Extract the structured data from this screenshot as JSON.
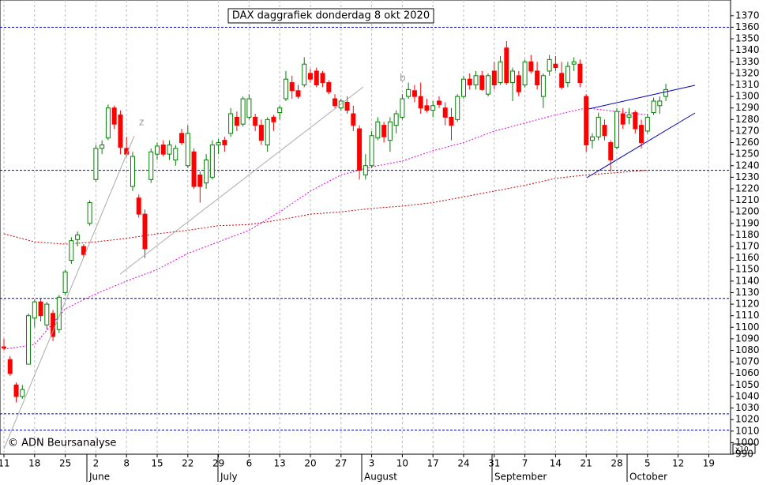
{
  "chart_data": {
    "type": "candlestick",
    "title": "DAX daggrafiek donderdag 8 okt 2020",
    "watermark": "© ADN Beursanalyse",
    "annotations": [
      "z",
      "b"
    ],
    "axis_multiplier": "x10",
    "x_tick_labels": [
      "11",
      "18",
      "25",
      "2",
      "8",
      "15",
      "22",
      "29",
      "6",
      "13",
      "20",
      "27",
      "3",
      "10",
      "17",
      "24",
      "31",
      "7",
      "14",
      "21",
      "28",
      "5",
      "12",
      "19"
    ],
    "months": [
      "June",
      "July",
      "August",
      "September",
      "October"
    ],
    "ylim": [
      990,
      1372
    ],
    "yticks": [
      990,
      1000,
      1010,
      1020,
      1030,
      1040,
      1050,
      1060,
      1070,
      1080,
      1090,
      1100,
      1110,
      1120,
      1130,
      1140,
      1150,
      1160,
      1170,
      1180,
      1190,
      1200,
      1210,
      1220,
      1230,
      1240,
      1250,
      1260,
      1270,
      1280,
      1290,
      1300,
      1310,
      1320,
      1330,
      1340,
      1350,
      1360,
      1370
    ],
    "up_color": "#008000",
    "down_color": "#ff0000",
    "hlines": [
      1360,
      1236,
      1125,
      1025,
      1011
    ],
    "hline_color": "#0000c0",
    "ma": [
      {
        "color": "#e000e0",
        "values": [
          1081,
          1085,
          1116,
          1129,
          1140,
          1150,
          1164,
          1174,
          1184,
          1200,
          1218,
          1232,
          1239,
          1244,
          1253,
          1260,
          1270,
          1277,
          1284,
          1290,
          1287,
          1284,
          null,
          null
        ]
      },
      {
        "color": "#d00000",
        "values": [
          1181,
          1174,
          1172,
          1174,
          1177,
          1181,
          1184,
          1188,
          1189,
          1193,
          1198,
          1200,
          1203,
          1205,
          1208,
          1213,
          1218,
          1223,
          1229,
          1232,
          1234,
          1236,
          null,
          null
        ]
      }
    ],
    "ohlc": [
      [
        1083,
        1090,
        1080,
        1082
      ],
      [
        1072,
        1075,
        1058,
        1060
      ],
      [
        1050,
        1052,
        1035,
        1040
      ],
      [
        1040,
        1050,
        1038,
        1046
      ],
      [
        1068,
        1112,
        1068,
        1110
      ],
      [
        1108,
        1124,
        1100,
        1122
      ],
      [
        1122,
        1125,
        1105,
        1110
      ],
      [
        1102,
        1122,
        1098,
        1120
      ],
      [
        1112,
        1115,
        1088,
        1092
      ],
      [
        1098,
        1128,
        1095,
        1126
      ],
      [
        1130,
        1150,
        1128,
        1148
      ],
      [
        1158,
        1178,
        1155,
        1175
      ],
      [
        1176,
        1183,
        1170,
        1180
      ],
      [
        1170,
        1172,
        1160,
        1163
      ],
      [
        1190,
        1210,
        1188,
        1208
      ],
      [
        1228,
        1258,
        1226,
        1255
      ],
      [
        1255,
        1262,
        1250,
        1258
      ],
      [
        1264,
        1293,
        1262,
        1290
      ],
      [
        1290,
        1292,
        1272,
        1276
      ],
      [
        1284,
        1288,
        1250,
        1256
      ],
      [
        1255,
        1265,
        1248,
        1250
      ],
      [
        1222,
        1252,
        1218,
        1248
      ],
      [
        1212,
        1215,
        1195,
        1198
      ],
      [
        1198,
        1202,
        1160,
        1168
      ],
      [
        1228,
        1255,
        1225,
        1252
      ],
      [
        1250,
        1260,
        1245,
        1257
      ],
      [
        1258,
        1262,
        1248,
        1250
      ],
      [
        1250,
        1262,
        1245,
        1258
      ],
      [
        1245,
        1258,
        1240,
        1255
      ],
      [
        1268,
        1272,
        1258,
        1260
      ],
      [
        1240,
        1275,
        1238,
        1268
      ],
      [
        1252,
        1255,
        1220,
        1222
      ],
      [
        1232,
        1235,
        1208,
        1222
      ],
      [
        1225,
        1250,
        1220,
        1245
      ],
      [
        1230,
        1262,
        1228,
        1258
      ],
      [
        1258,
        1263,
        1250,
        1260
      ],
      [
        1262,
        1265,
        1252,
        1258
      ],
      [
        1268,
        1290,
        1265,
        1285
      ],
      [
        1282,
        1287,
        1270,
        1275
      ],
      [
        1276,
        1300,
        1274,
        1298
      ],
      [
        1282,
        1302,
        1280,
        1298
      ],
      [
        1282,
        1285,
        1270,
        1275
      ],
      [
        1275,
        1280,
        1258,
        1262
      ],
      [
        1258,
        1282,
        1252,
        1280
      ],
      [
        1282,
        1284,
        1270,
        1278
      ],
      [
        1286,
        1292,
        1280,
        1290
      ],
      [
        1298,
        1322,
        1296,
        1315
      ],
      [
        1312,
        1318,
        1298,
        1305
      ],
      [
        1305,
        1310,
        1298,
        1300
      ],
      [
        1310,
        1334,
        1308,
        1328
      ],
      [
        1320,
        1324,
        1312,
        1315
      ],
      [
        1322,
        1325,
        1308,
        1310
      ],
      [
        1320,
        1322,
        1308,
        1312
      ],
      [
        1312,
        1314,
        1302,
        1304
      ],
      [
        1298,
        1302,
        1290,
        1292
      ],
      [
        1290,
        1298,
        1288,
        1296
      ],
      [
        1295,
        1300,
        1285,
        1288
      ],
      [
        1285,
        1292,
        1270,
        1275
      ],
      [
        1272,
        1275,
        1228,
        1236
      ],
      [
        1232,
        1250,
        1228,
        1240
      ],
      [
        1240,
        1270,
        1238,
        1266
      ],
      [
        1264,
        1282,
        1262,
        1278
      ],
      [
        1275,
        1278,
        1260,
        1265
      ],
      [
        1262,
        1282,
        1252,
        1278
      ],
      [
        1275,
        1288,
        1268,
        1285
      ],
      [
        1282,
        1302,
        1280,
        1298
      ],
      [
        1300,
        1312,
        1298,
        1306
      ],
      [
        1305,
        1310,
        1295,
        1300
      ],
      [
        1300,
        1312,
        1285,
        1290
      ],
      [
        1292,
        1298,
        1286,
        1288
      ],
      [
        1288,
        1296,
        1282,
        1292
      ],
      [
        1296,
        1300,
        1290,
        1293
      ],
      [
        1290,
        1295,
        1275,
        1282
      ],
      [
        1282,
        1290,
        1262,
        1275
      ],
      [
        1280,
        1302,
        1278,
        1300
      ],
      [
        1300,
        1318,
        1298,
        1315
      ],
      [
        1315,
        1320,
        1306,
        1310
      ],
      [
        1310,
        1322,
        1306,
        1318
      ],
      [
        1318,
        1322,
        1305,
        1306
      ],
      [
        1302,
        1320,
        1300,
        1318
      ],
      [
        1322,
        1330,
        1306,
        1310
      ],
      [
        1312,
        1335,
        1310,
        1330
      ],
      [
        1342,
        1348,
        1310,
        1312
      ],
      [
        1312,
        1325,
        1296,
        1322
      ],
      [
        1318,
        1322,
        1300,
        1304
      ],
      [
        1310,
        1332,
        1308,
        1330
      ],
      [
        1330,
        1336,
        1320,
        1322
      ],
      [
        1322,
        1330,
        1306,
        1310
      ],
      [
        1300,
        1320,
        1290,
        1318
      ],
      [
        1322,
        1336,
        1318,
        1332
      ],
      [
        1328,
        1335,
        1322,
        1325
      ],
      [
        1320,
        1330,
        1306,
        1308
      ],
      [
        1312,
        1330,
        1308,
        1326
      ],
      [
        1328,
        1334,
        1322,
        1330
      ],
      [
        1328,
        1332,
        1308,
        1312
      ],
      [
        1300,
        1302,
        1252,
        1258
      ],
      [
        1262,
        1268,
        1255,
        1265
      ],
      [
        1265,
        1286,
        1262,
        1282
      ],
      [
        1275,
        1280,
        1262,
        1266
      ],
      [
        1260,
        1262,
        1235,
        1245
      ],
      [
        1256,
        1290,
        1254,
        1287
      ],
      [
        1285,
        1290,
        1272,
        1276
      ],
      [
        1282,
        1290,
        1276,
        1284
      ],
      [
        1286,
        1288,
        1268,
        1272
      ],
      [
        1275,
        1280,
        1255,
        1260
      ],
      [
        1270,
        1285,
        1268,
        1282
      ],
      [
        1286,
        1299,
        1284,
        1296
      ],
      [
        1292,
        1300,
        1285,
        1296
      ],
      [
        1300,
        1311,
        1296,
        1306
      ]
    ]
  }
}
